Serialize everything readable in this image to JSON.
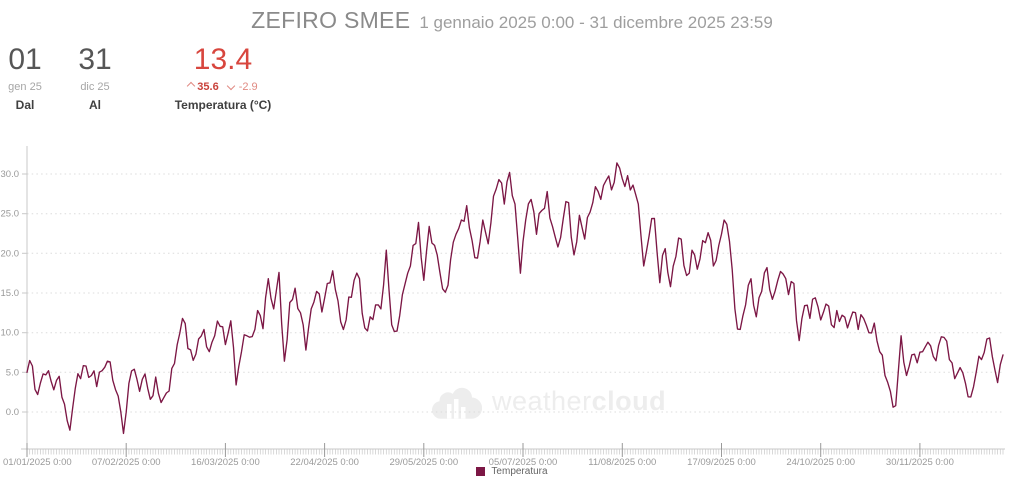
{
  "header": {
    "station_name": "ZEFIRO SMEE",
    "period": "1 gennaio 2025 0:00 - 31 dicembre 2025 23:59",
    "from": {
      "day": "01",
      "monthyear": "gen 25",
      "label": "Dal"
    },
    "to": {
      "day": "31",
      "monthyear": "dic 25",
      "label": "Al"
    },
    "metric": {
      "value": "13.4",
      "max": "35.6",
      "min": "-2.9",
      "label": "Temperatura (°C)"
    }
  },
  "watermark": {
    "weather": "weather",
    "cloud": "cloud"
  },
  "legend": {
    "label": "Temperatura"
  },
  "colors": {
    "series": "#7c1745",
    "value-red": "#d8463e",
    "max-red": "#c9423b",
    "min-red": "#e08a82",
    "axis": "#c8c8c8",
    "major-tick": "#9a9a9a",
    "grid": "#dcdcdc",
    "tick-label": "#9a9a9a",
    "title": "#8a8a8a",
    "subtitle": "#9e9e9e",
    "stat-number": "#565656",
    "stat-sub": "#a6a6a6",
    "stat-label": "#404040",
    "watermark": "#ededed",
    "legend-text": "#666666"
  },
  "chart_data": {
    "type": "line",
    "title": "ZEFIRO SMEE",
    "series_name": "Temperatura",
    "ylabel": "Temperatura (°C)",
    "x_unit": "day of year 2025",
    "x_start_day": 0,
    "x_step_days": 2,
    "x_note": "temperature sampled every 2 days, day 0 = 01/01/2025, day 364 = 31/12/2025",
    "values": [
      5.0,
      5.8,
      2.2,
      4.8,
      5.2,
      2.8,
      4.5,
      1.0,
      -2.3,
      3.0,
      4.2,
      5.8,
      4.6,
      3.2,
      5.2,
      6.4,
      4.0,
      2.0,
      -2.7,
      3.6,
      5.4,
      2.6,
      4.8,
      1.6,
      4.4,
      1.2,
      2.4,
      5.5,
      8.5,
      11.8,
      8.0,
      6.5,
      9.2,
      10.4,
      7.6,
      9.6,
      10.8,
      8.5,
      11.5,
      3.4,
      7.6,
      9.6,
      9.5,
      12.8,
      10.5,
      16.8,
      13.0,
      17.6,
      6.4,
      13.8,
      15.6,
      12.5,
      7.8,
      13.0,
      15.2,
      12.6,
      16.2,
      17.8,
      14.0,
      10.4,
      14.5,
      16.6,
      16.8,
      10.6,
      12.0,
      13.5,
      13.0,
      20.4,
      11.0,
      10.2,
      14.8,
      17.5,
      21.0,
      23.9,
      16.6,
      23.4,
      21.0,
      17.6,
      15.1,
      19.2,
      22.4,
      24.2,
      26.0,
      21.6,
      19.4,
      24.2,
      21.2,
      27.2,
      29.3,
      26.2,
      30.2,
      26.2,
      17.5,
      24.2,
      26.8,
      22.4,
      25.4,
      27.8,
      23.4,
      20.8,
      24.4,
      26.4,
      19.8,
      24.8,
      21.8,
      25.2,
      28.4,
      26.8,
      29.2,
      28.0,
      31.4,
      29.4,
      29.8,
      28.6,
      26.2,
      18.4,
      22.2,
      24.4,
      16.3,
      20.6,
      15.8,
      19.6,
      21.8,
      17.2,
      20.4,
      18.0,
      21.6,
      22.6,
      18.4,
      21.0,
      24.2,
      21.5,
      13.0,
      10.4,
      13.5,
      16.8,
      12.0,
      15.2,
      18.2,
      14.2,
      16.6,
      17.4,
      14.8,
      16.2,
      9.0,
      13.4,
      11.8,
      14.4,
      11.6,
      13.6,
      11.0,
      12.8,
      12.2,
      10.6,
      12.6,
      10.4,
      11.8,
      10.0,
      11.2,
      7.6,
      4.6,
      2.6,
      0.8,
      9.6,
      4.6,
      7.2,
      6.2,
      7.6,
      8.8,
      7.0,
      8.4,
      9.4,
      6.6,
      4.2,
      5.6,
      3.6,
      1.9,
      5.0,
      6.6,
      9.2,
      7.0,
      3.7,
      7.2
    ],
    "xticks": [
      "01/01/2025 0:00",
      "07/02/2025 0:00",
      "16/03/2025 0:00",
      "22/04/2025 0:00",
      "29/05/2025 0:00",
      "05/07/2025 0:00",
      "11/08/2025 0:00",
      "17/09/2025 0:00",
      "24/10/2025 0:00",
      "30/11/2025 0:00"
    ],
    "xtick_days": [
      0,
      37,
      74,
      111,
      148,
      185,
      222,
      259,
      296,
      333
    ],
    "yticks": [
      "0.0",
      "5.0",
      "10.0",
      "15.0",
      "20.0",
      "25.0",
      "30.0"
    ],
    "ylim": [
      -4.7,
      33.0
    ],
    "xlim_days": [
      0,
      364
    ],
    "grid": "horizontal-dotted",
    "legend_position": "bottom-center"
  }
}
